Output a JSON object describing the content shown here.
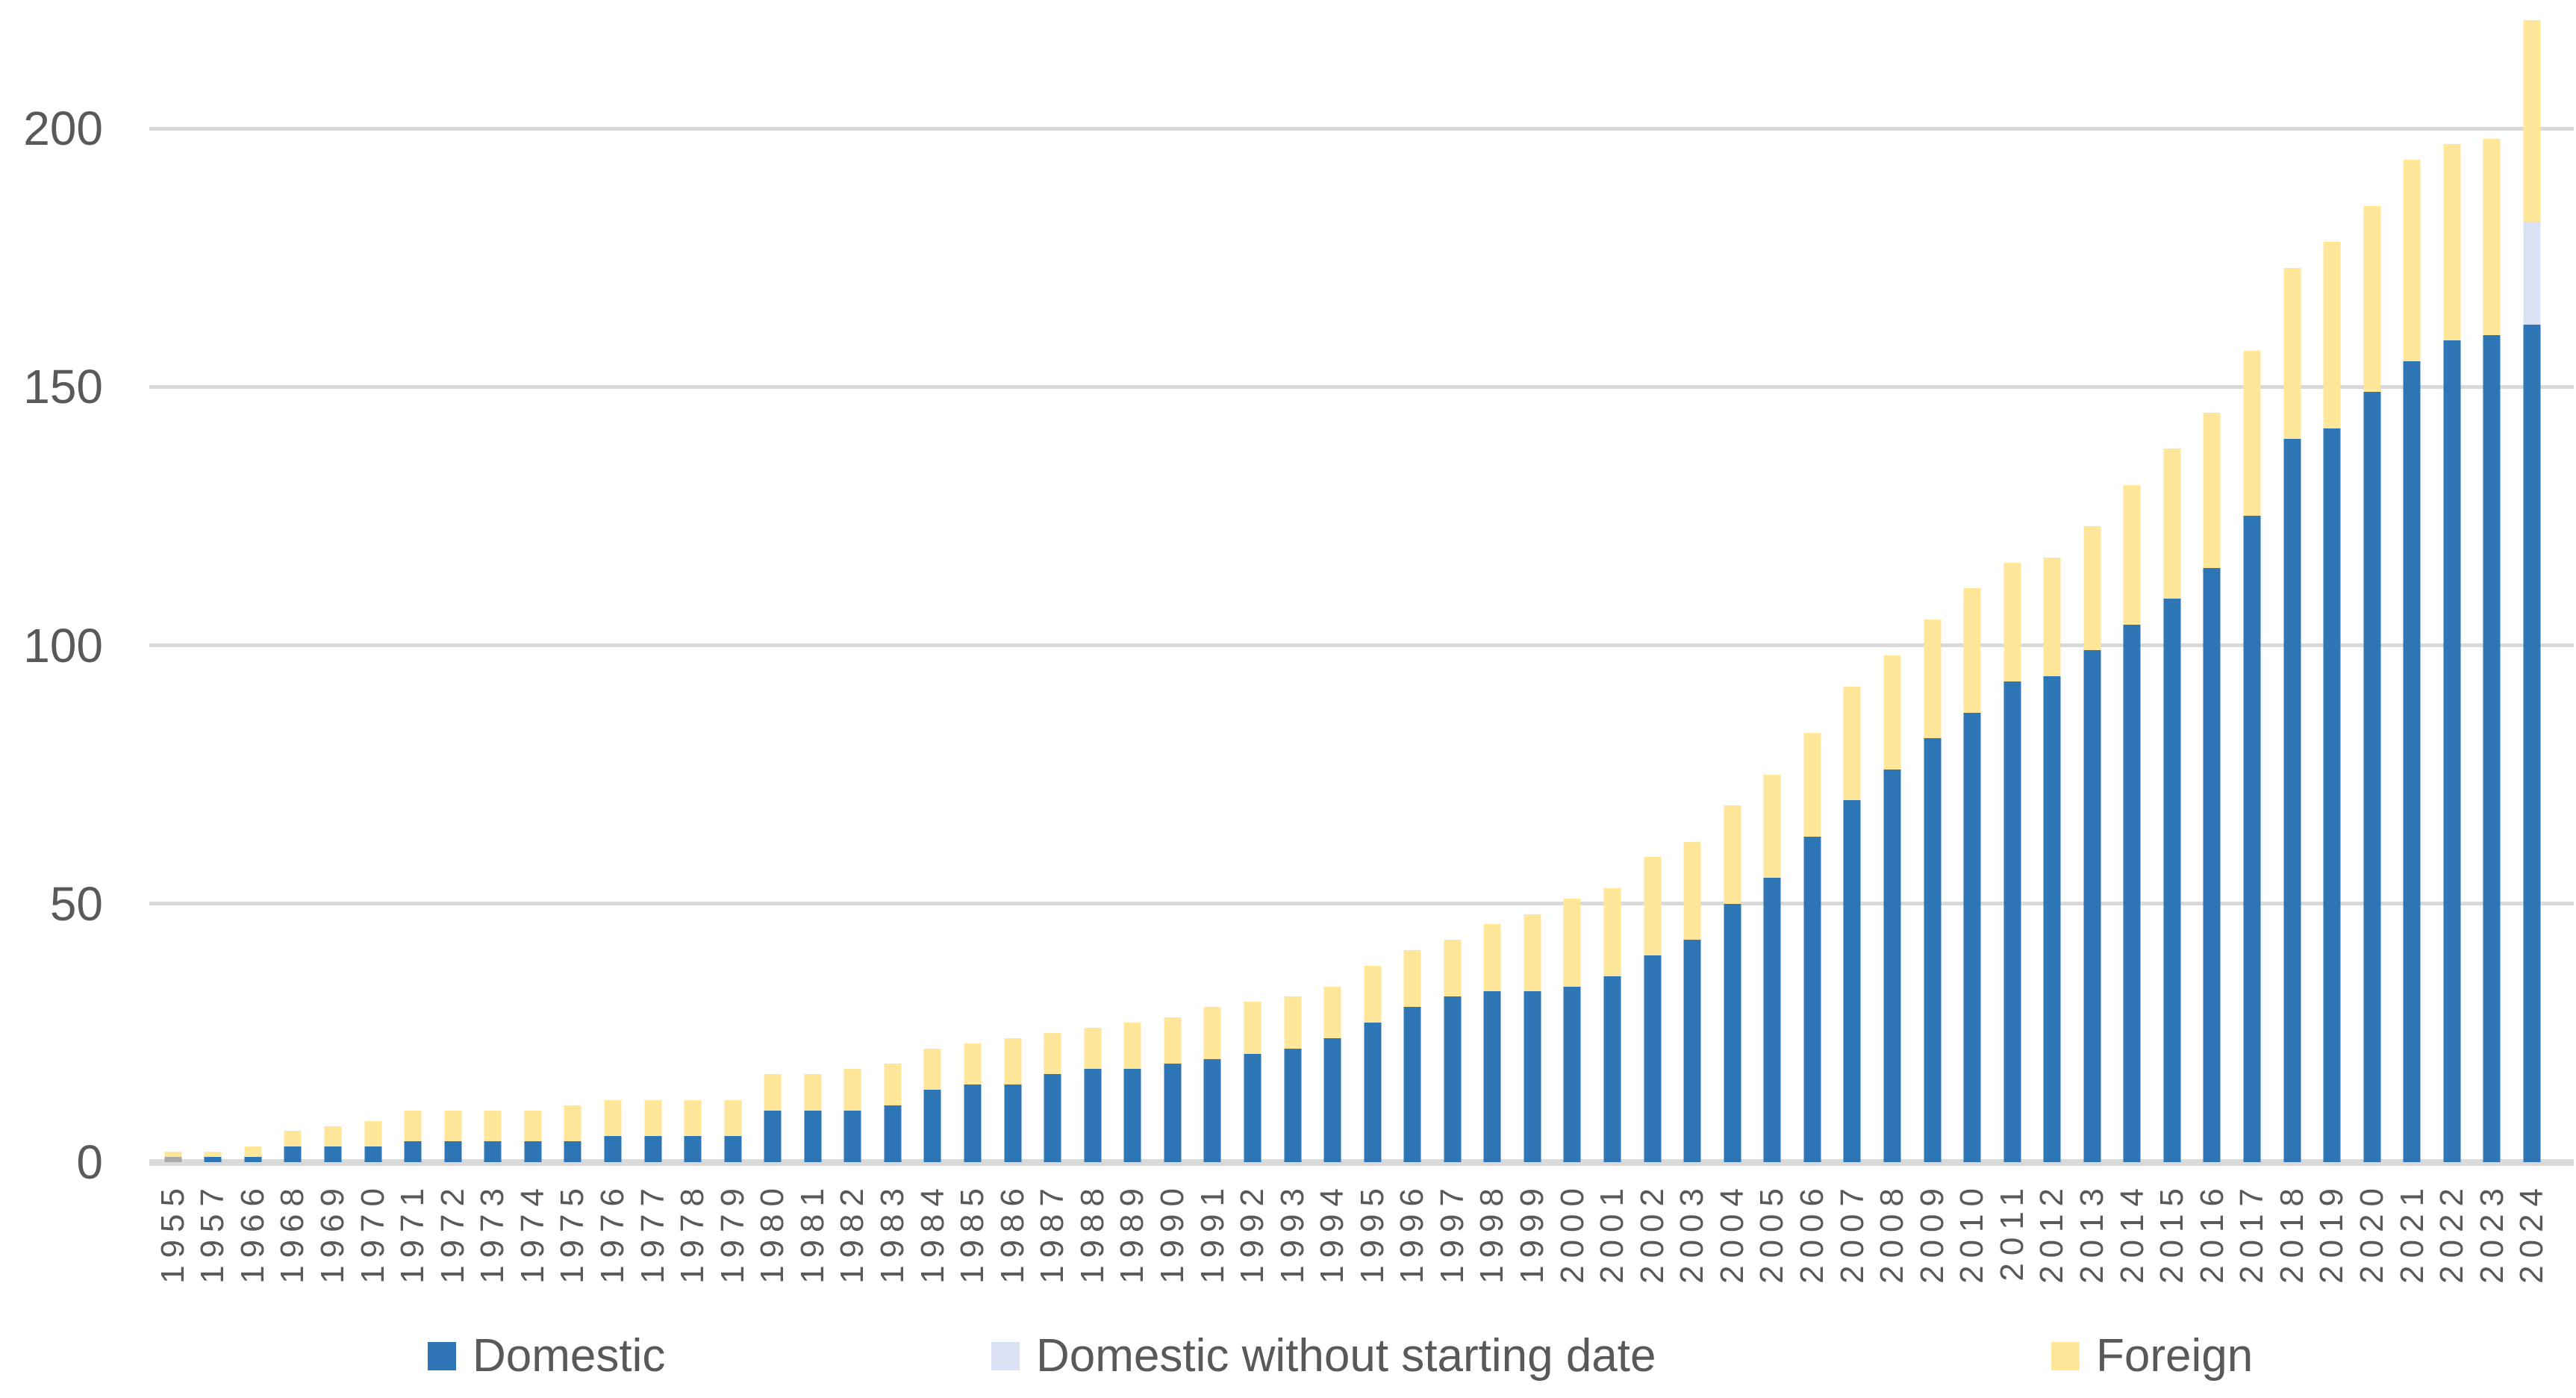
{
  "chart_data": {
    "type": "bar",
    "stacked": true,
    "title": "",
    "xlabel": "",
    "ylabel": "",
    "ylim": [
      0,
      225
    ],
    "yticks": [
      0,
      50,
      100,
      150,
      200
    ],
    "grid": "horizontal",
    "legend_position": "bottom",
    "categories": [
      "1955",
      "1957",
      "1966",
      "1968",
      "1969",
      "1970",
      "1971",
      "1972",
      "1973",
      "1974",
      "1975",
      "1976",
      "1977",
      "1978",
      "1979",
      "1980",
      "1981",
      "1982",
      "1983",
      "1984",
      "1985",
      "1986",
      "1987",
      "1988",
      "1989",
      "1990",
      "1991",
      "1992",
      "1993",
      "1994",
      "1995",
      "1996",
      "1997",
      "1998",
      "1999",
      "2000",
      "2001",
      "2002",
      "2003",
      "2004",
      "2005",
      "2006",
      "2007",
      "2008",
      "2009",
      "2010",
      "2011",
      "2012",
      "2013",
      "2014",
      "2015",
      "2016",
      "2017",
      "2018",
      "2019",
      "2020",
      "2021",
      "2022",
      "2023",
      "2024"
    ],
    "stack_order_bottom_to_top": [
      "Unlabeled gray segment",
      "Domestic",
      "Domestic without starting date",
      "Foreign"
    ],
    "series": [
      {
        "name": "Domestic",
        "color": "#2E75B6",
        "in_legend": true,
        "values": [
          0,
          1,
          1,
          3,
          3,
          3,
          4,
          4,
          4,
          4,
          4,
          5,
          5,
          5,
          5,
          10,
          10,
          10,
          11,
          14,
          15,
          15,
          17,
          18,
          18,
          19,
          20,
          21,
          22,
          24,
          27,
          30,
          32,
          33,
          33,
          34,
          36,
          40,
          43,
          50,
          55,
          63,
          70,
          76,
          82,
          87,
          93,
          94,
          99,
          104,
          109,
          115,
          125,
          140,
          142,
          149,
          155,
          159,
          160,
          162
        ]
      },
      {
        "name": "Domestic without starting date",
        "color": "#D9E1F2",
        "in_legend": true,
        "values": [
          0,
          0,
          0,
          0,
          0,
          0,
          0,
          0,
          0,
          0,
          0,
          0,
          0,
          0,
          0,
          0,
          0,
          0,
          0,
          0,
          0,
          0,
          0,
          0,
          0,
          0,
          0,
          0,
          0,
          0,
          0,
          0,
          0,
          0,
          0,
          0,
          0,
          0,
          0,
          0,
          0,
          0,
          0,
          0,
          0,
          0,
          0,
          0,
          0,
          0,
          0,
          0,
          0,
          0,
          0,
          0,
          0,
          0,
          0,
          20
        ]
      },
      {
        "name": "Foreign",
        "color": "#FFE699",
        "in_legend": true,
        "values": [
          1,
          1,
          2,
          3,
          4,
          5,
          6,
          6,
          6,
          6,
          7,
          7,
          7,
          7,
          7,
          7,
          7,
          8,
          8,
          8,
          8,
          9,
          8,
          8,
          9,
          9,
          10,
          10,
          10,
          10,
          11,
          11,
          11,
          13,
          15,
          17,
          17,
          19,
          19,
          19,
          20,
          20,
          22,
          22,
          23,
          24,
          23,
          23,
          24,
          27,
          29,
          30,
          32,
          33,
          36,
          36,
          39,
          38,
          38,
          39
        ]
      },
      {
        "name": "Unlabeled gray segment",
        "color": "#A9A9A9",
        "in_legend": false,
        "values": [
          1,
          0,
          0,
          0,
          0,
          0,
          0,
          0,
          0,
          0,
          0,
          0,
          0,
          0,
          0,
          0,
          0,
          0,
          0,
          0,
          0,
          0,
          0,
          0,
          0,
          0,
          0,
          0,
          0,
          0,
          0,
          0,
          0,
          0,
          0,
          0,
          0,
          0,
          0,
          0,
          0,
          0,
          0,
          0,
          0,
          0,
          0,
          0,
          0,
          0,
          0,
          0,
          0,
          0,
          0,
          0,
          0,
          0,
          0,
          0
        ]
      }
    ],
    "ytick_labels": [
      "0",
      "50",
      "100",
      "150",
      "200"
    ]
  },
  "legend": {
    "items": [
      {
        "label": "Domestic",
        "color": "#2E75B6"
      },
      {
        "label": "Domestic without starting date",
        "color": "#D9E1F2"
      },
      {
        "label": "Foreign",
        "color": "#FFE699"
      }
    ]
  },
  "colors": {
    "gridline": "#d9d9d9",
    "axis_text": "#595959",
    "legend_text": "#595959",
    "background": "#ffffff"
  }
}
